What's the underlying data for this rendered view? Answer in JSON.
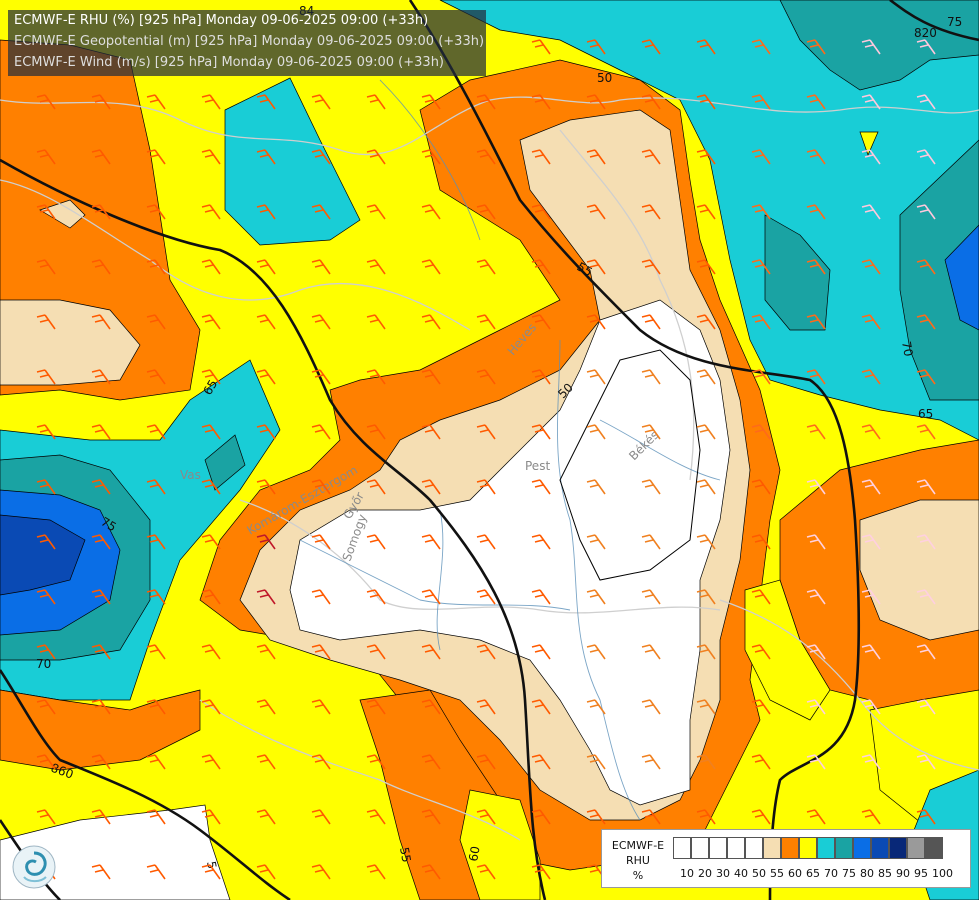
{
  "header": {
    "line1": "ECMWF-E RHU (%) [925 hPa] Monday 09-06-2025 09:00 (+33h)",
    "line2": "ECMWF-E Geopotential (m) [925 hPa] Monday 09-06-2025 09:00 (+33h)",
    "line3": "ECMWF-E Wind (m/s) [925 hPa] Monday 09-06-2025 09:00 (+33h)"
  },
  "contour_labels": {
    "geo_820": "820",
    "geo_840": "84",
    "geo_860": "860",
    "rh_75_ne": "75",
    "rh_70_e": "70",
    "rh_65_e": "65",
    "rh_50_n": "50",
    "rh_55_c": "55",
    "rh_50_c": "50",
    "rh_65_w": "65",
    "rh_75_w": "75",
    "rh_70_w": "70",
    "rh_55_s": "55",
    "rh_60_s": "60",
    "rh_5_sw": "5"
  },
  "places": {
    "heves": "Heves",
    "pest": "Pest",
    "bekes": "Békés",
    "gyor": "Győr",
    "komarom": "Komárom-Esztergom",
    "vas": "Vas",
    "somogy": "Somogy"
  },
  "legend": {
    "title_line1": "ECMWF-E",
    "title_line2": "RHU",
    "title_line3": "%",
    "colors": [
      "#ffffff",
      "#ffffff",
      "#ffffff",
      "#ffffff",
      "#ffffff",
      "#f5deb3",
      "#ff8000",
      "#ffff00",
      "#19cdd6",
      "#1aa3a3",
      "#0a6ee6",
      "#0a4ab4",
      "#082878",
      "#9a9a9a",
      "#555555"
    ],
    "ticks": [
      "10",
      "20",
      "30",
      "40",
      "50",
      "55",
      "60",
      "65",
      "70",
      "75",
      "80",
      "85",
      "90",
      "95",
      "100"
    ]
  },
  "colors": {
    "wheat": "#f5deb3",
    "orange": "#ff8000",
    "yellow": "#ffff00",
    "cyan": "#19cdd6",
    "teal": "#1aa3a3",
    "blue": "#0a6ee6",
    "darkblue": "#0a4ab4"
  }
}
